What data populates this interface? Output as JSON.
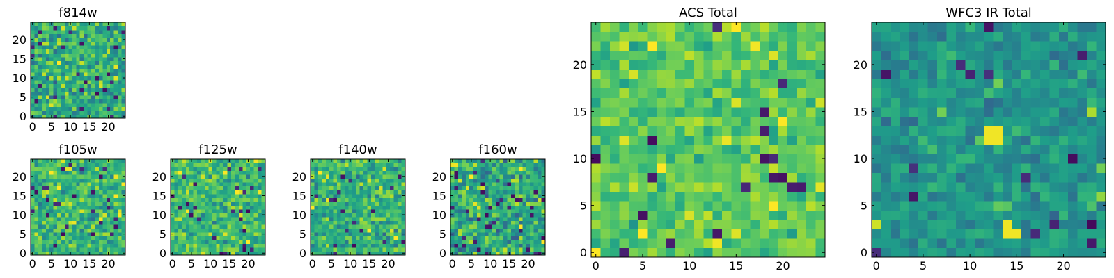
{
  "chart_data": [
    {
      "type": "heatmap",
      "title": "f814w",
      "rows": 25,
      "cols": 25,
      "colormap": "viridis",
      "xlim": [
        0,
        24
      ],
      "ylim": [
        0,
        24
      ],
      "xticks": [
        "0",
        "5",
        "10",
        "15",
        "20"
      ],
      "yticks": [
        "0",
        "5",
        "10",
        "15",
        "20"
      ],
      "seed": 814,
      "mean": 0.62,
      "spread": 0.16,
      "dark_fraction": 0.05
    },
    {
      "type": "heatmap",
      "title": "f105w",
      "rows": 25,
      "cols": 25,
      "colormap": "viridis",
      "xlim": [
        0,
        24
      ],
      "ylim": [
        0,
        24
      ],
      "xticks": [
        "0",
        "5",
        "10",
        "15",
        "20"
      ],
      "yticks": [
        "0",
        "5",
        "10",
        "15",
        "20"
      ],
      "seed": 105,
      "mean": 0.66,
      "spread": 0.14,
      "dark_fraction": 0.04
    },
    {
      "type": "heatmap",
      "title": "f125w",
      "rows": 25,
      "cols": 25,
      "colormap": "viridis",
      "xlim": [
        0,
        24
      ],
      "ylim": [
        0,
        24
      ],
      "xticks": [
        "0",
        "5",
        "10",
        "15",
        "20"
      ],
      "yticks": [
        "0",
        "5",
        "10",
        "15",
        "20"
      ],
      "seed": 125,
      "mean": 0.67,
      "spread": 0.14,
      "dark_fraction": 0.04
    },
    {
      "type": "heatmap",
      "title": "f140w",
      "rows": 25,
      "cols": 25,
      "colormap": "viridis",
      "xlim": [
        0,
        24
      ],
      "ylim": [
        0,
        24
      ],
      "xticks": [
        "0",
        "5",
        "10",
        "15",
        "20"
      ],
      "yticks": [
        "0",
        "5",
        "10",
        "15",
        "20"
      ],
      "seed": 140,
      "mean": 0.64,
      "spread": 0.14,
      "dark_fraction": 0.04
    },
    {
      "type": "heatmap",
      "title": "f160w",
      "rows": 25,
      "cols": 25,
      "colormap": "viridis",
      "xlim": [
        0,
        24
      ],
      "ylim": [
        0,
        24
      ],
      "xticks": [
        "0",
        "5",
        "10",
        "15",
        "20"
      ],
      "yticks": [
        "0",
        "5",
        "10",
        "15",
        "20"
      ],
      "seed": 160,
      "mean": 0.6,
      "spread": 0.16,
      "dark_fraction": 0.06
    },
    {
      "type": "heatmap",
      "title": "ACS Total",
      "rows": 25,
      "cols": 25,
      "colormap": "viridis",
      "xlim": [
        0,
        24
      ],
      "ylim": [
        0,
        24
      ],
      "xticks": [
        "0",
        "5",
        "10",
        "15",
        "20"
      ],
      "yticks": [
        "0",
        "5",
        "10",
        "15",
        "20"
      ],
      "seed": 900,
      "mean": 0.74,
      "spread": 0.1,
      "dark_fraction": 0.03
    },
    {
      "type": "heatmap",
      "title": "WFC3 IR Total",
      "rows": 25,
      "cols": 25,
      "colormap": "viridis",
      "xlim": [
        0,
        24
      ],
      "ylim": [
        0,
        24
      ],
      "xticks": [
        "0",
        "5",
        "10",
        "15",
        "20"
      ],
      "yticks": [
        "0",
        "5",
        "10",
        "15",
        "20"
      ],
      "seed": 901,
      "mean": 0.52,
      "spread": 0.09,
      "dark_fraction": 0.025,
      "bright_cells": [
        [
          12,
          12
        ],
        [
          12,
          13
        ],
        [
          13,
          12
        ],
        [
          13,
          13
        ],
        [
          2,
          14
        ],
        [
          2,
          15
        ],
        [
          3,
          14
        ]
      ]
    }
  ]
}
